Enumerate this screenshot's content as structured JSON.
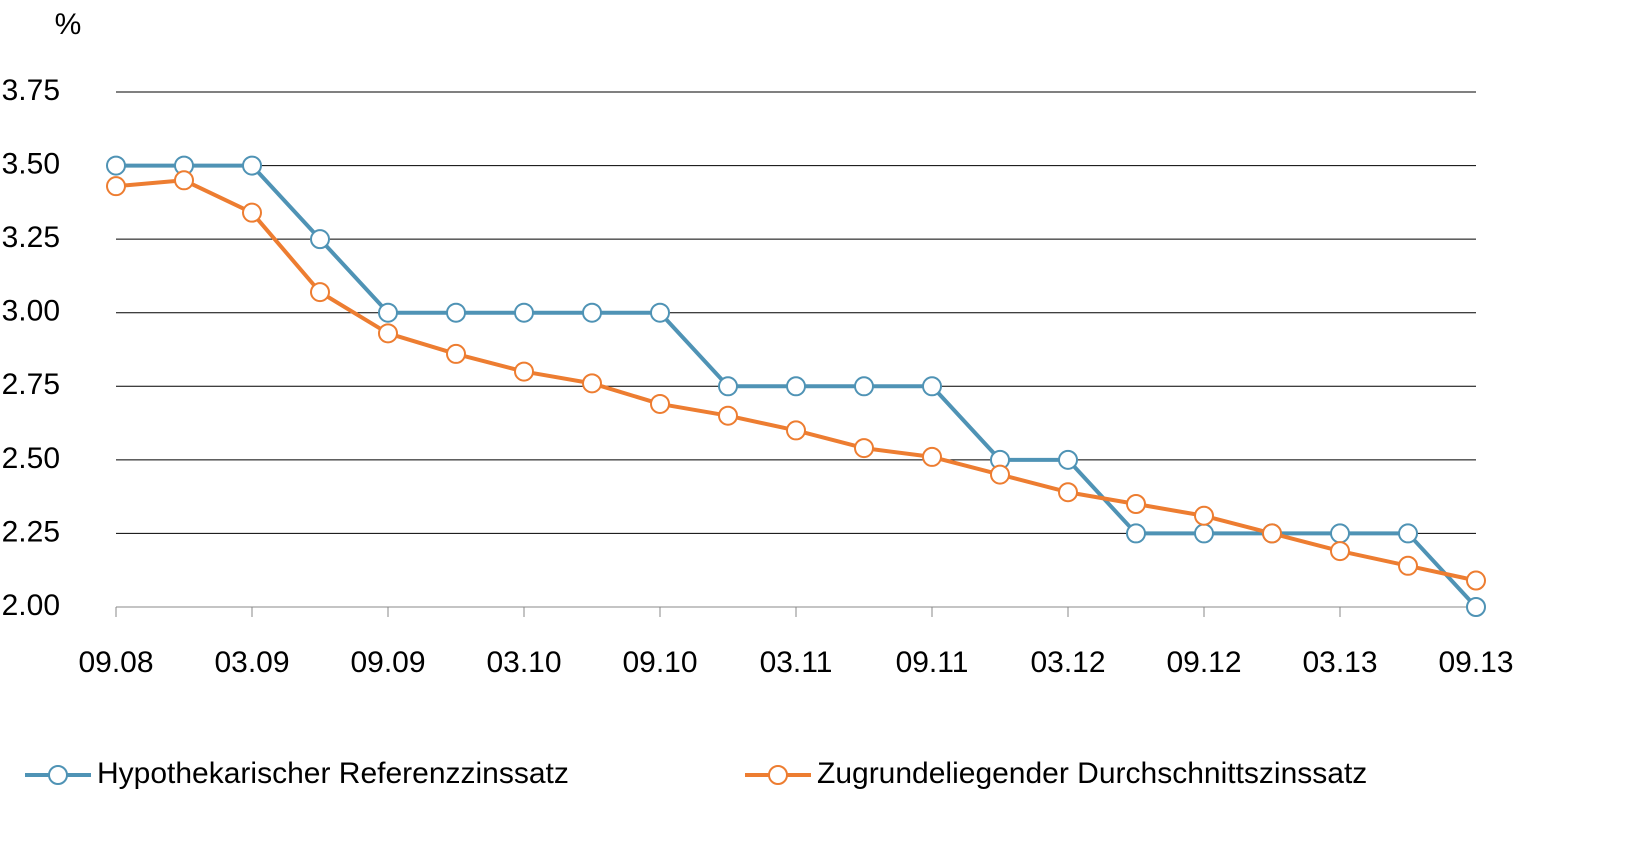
{
  "chart_data": {
    "type": "line",
    "y_label": "%",
    "categories": [
      "09.08",
      null,
      "03.09",
      null,
      "09.09",
      null,
      "03.10",
      null,
      "09.10",
      null,
      "03.11",
      null,
      "09.11",
      null,
      "03.12",
      null,
      "09.12",
      null,
      "03.13",
      null,
      "09.13"
    ],
    "series": [
      {
        "name": "Hypothekarischer Referenzzinssatz",
        "color": "#4f93b5",
        "values": [
          3.5,
          3.5,
          3.5,
          3.25,
          3.0,
          3.0,
          3.0,
          3.0,
          3.0,
          2.75,
          2.75,
          2.75,
          2.75,
          2.5,
          2.5,
          2.25,
          2.25,
          2.25,
          2.25,
          2.25,
          2.0
        ]
      },
      {
        "name": "Zugrundeliegender Durchschnittszinssatz",
        "color": "#ed7d31",
        "values": [
          3.43,
          3.45,
          3.34,
          3.07,
          2.93,
          2.86,
          2.8,
          2.76,
          2.69,
          2.65,
          2.6,
          2.54,
          2.51,
          2.45,
          2.39,
          2.35,
          2.31,
          2.25,
          2.19,
          2.14,
          2.09
        ]
      }
    ],
    "ylim": [
      2,
      3.75
    ],
    "yticks": [
      {
        "value": 2,
        "label": "2.00"
      },
      2.25,
      {
        "value": 2.5,
        "label": "2.50"
      },
      2.75,
      {
        "value": 3,
        "label": "3.00"
      },
      3.25,
      {
        "value": 3.5,
        "label": "3.50"
      },
      3.75
    ],
    "grid": true,
    "legend": "bottom"
  }
}
